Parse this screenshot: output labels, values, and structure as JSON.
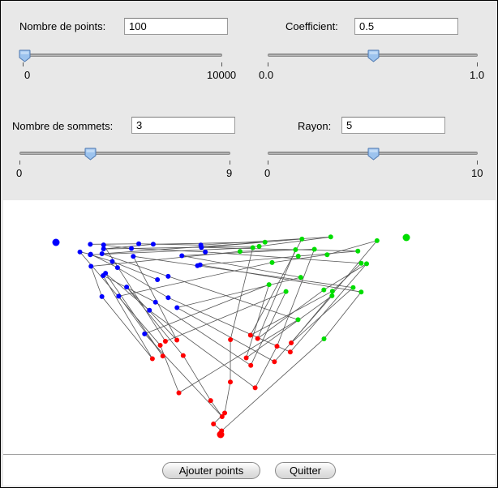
{
  "fields": {
    "points": {
      "label": "Nombre de points:",
      "value": "100"
    },
    "coefficient": {
      "label": "Coefficient:",
      "value": "0.5"
    },
    "sommets": {
      "label": "Nombre de sommets:",
      "value": "3"
    },
    "rayon": {
      "label": "Rayon:",
      "value": "5"
    }
  },
  "sliders": {
    "points": {
      "min_label": "0",
      "max_label": "10000",
      "min": 0,
      "max": 10000,
      "value": 100
    },
    "coefficient": {
      "min_label": "0.0",
      "max_label": "1.0",
      "min": 0,
      "max": 1,
      "value": 0.5
    },
    "sommets": {
      "min_label": "0",
      "max_label": "9",
      "min": 0,
      "max": 9,
      "value": 3
    },
    "rayon": {
      "min_label": "0",
      "max_label": "10",
      "min": 0,
      "max": 10,
      "value": 5
    }
  },
  "buttons": {
    "add_label": "Ajouter points",
    "quit_label": "Quitter"
  },
  "colors": {
    "vertex_1": "#0000ff",
    "vertex_2": "#00dd00",
    "vertex_3": "#ff0000",
    "edges": "#555555",
    "slider_thumb": "#8fb8e8"
  },
  "plot": {
    "vertices": [
      {
        "color": "blue"
      },
      {
        "color": "green"
      },
      {
        "color": "red"
      }
    ]
  }
}
